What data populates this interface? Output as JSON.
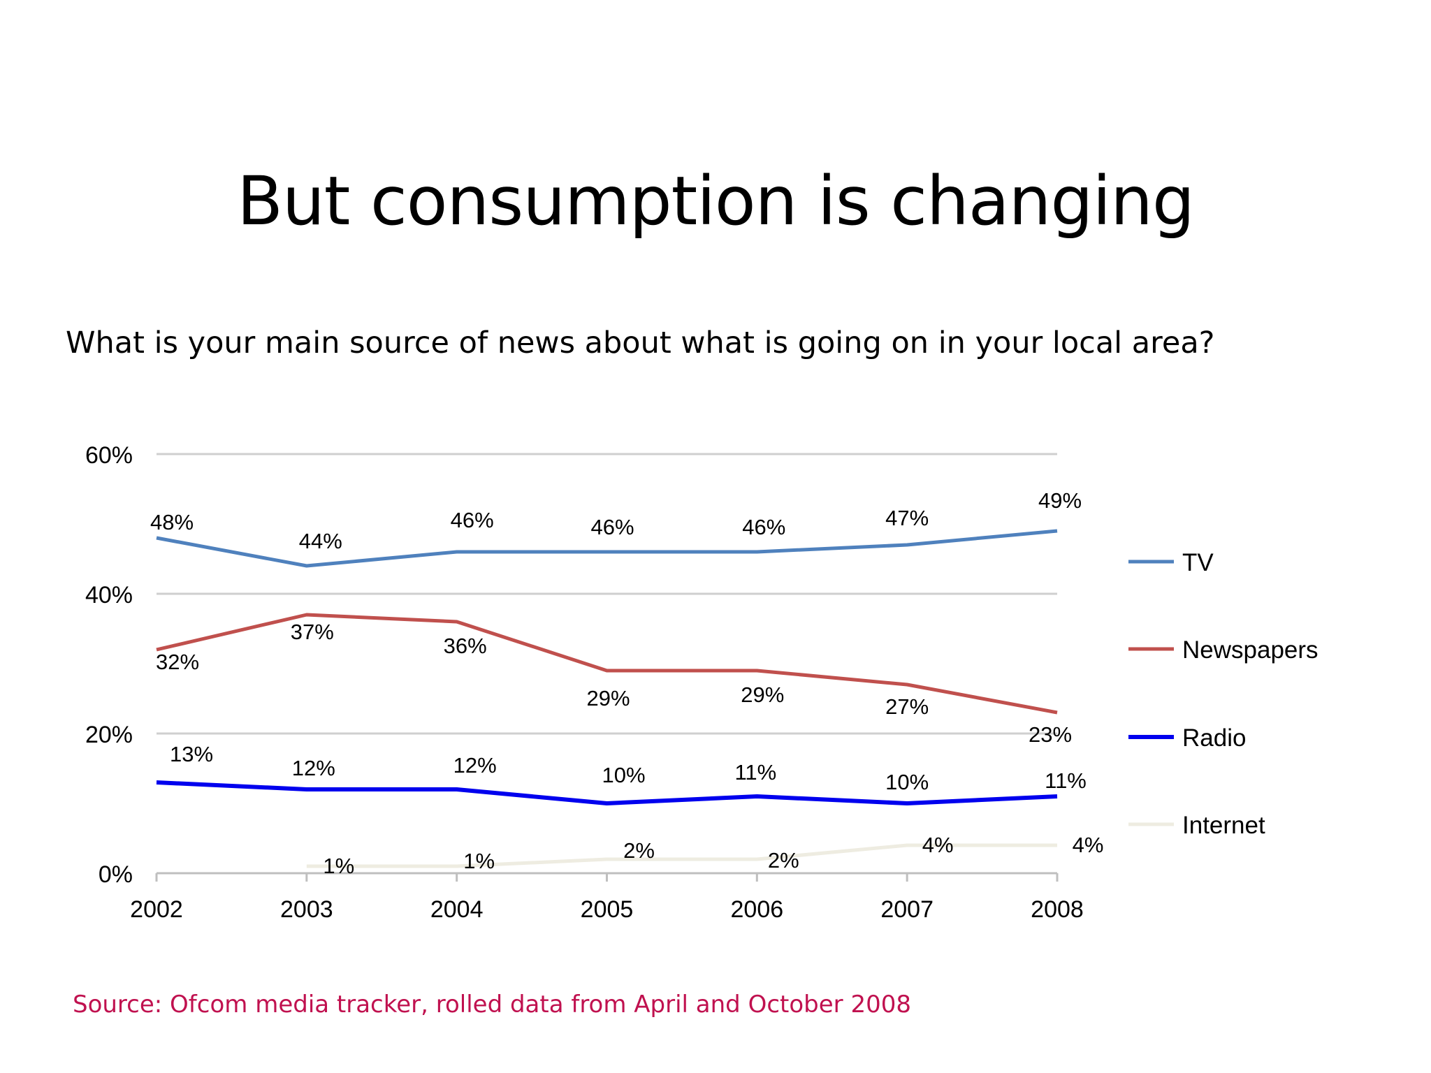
{
  "slide": {
    "title": "But consumption is changing",
    "subtitle": "What is your main source of news about what is going on in your local area?",
    "source": "Source: Ofcom media tracker, rolled data from April and October 2008",
    "source_color": "#c0114f"
  },
  "chart_data": {
    "type": "line",
    "title": "",
    "xlabel": "",
    "ylabel": "",
    "x": [
      "2002",
      "2003",
      "2004",
      "2005",
      "2006",
      "2007",
      "2008"
    ],
    "ylim": [
      0,
      60
    ],
    "yticks": [
      0,
      20,
      40,
      60
    ],
    "ytick_labels": [
      "0%",
      "20%",
      "40%",
      "60%"
    ],
    "grid": true,
    "legend_position": "right",
    "series": [
      {
        "name": "TV",
        "color": "#4f81bd",
        "values": [
          48,
          44,
          46,
          46,
          46,
          47,
          49
        ],
        "labels": [
          "48%",
          "44%",
          "46%",
          "46%",
          "46%",
          "47%",
          "49%"
        ]
      },
      {
        "name": "Newspapers",
        "color": "#c0504d",
        "values": [
          32,
          37,
          36,
          29,
          29,
          27,
          23
        ],
        "labels": [
          "32%",
          "37%",
          "36%",
          "29%",
          "29%",
          "27%",
          "23%"
        ]
      },
      {
        "name": "Radio",
        "color": "#0000ee",
        "values": [
          13,
          12,
          12,
          10,
          11,
          10,
          11
        ],
        "labels": [
          "13%",
          "12%",
          "12%",
          "10%",
          "11%",
          "10%",
          "11%"
        ]
      },
      {
        "name": "Internet",
        "color": "#eeece1",
        "values": [
          null,
          1,
          1,
          2,
          2,
          4,
          4
        ],
        "labels": [
          null,
          "1%",
          "1%",
          "2%",
          "2%",
          "4%",
          "4%"
        ]
      }
    ]
  }
}
